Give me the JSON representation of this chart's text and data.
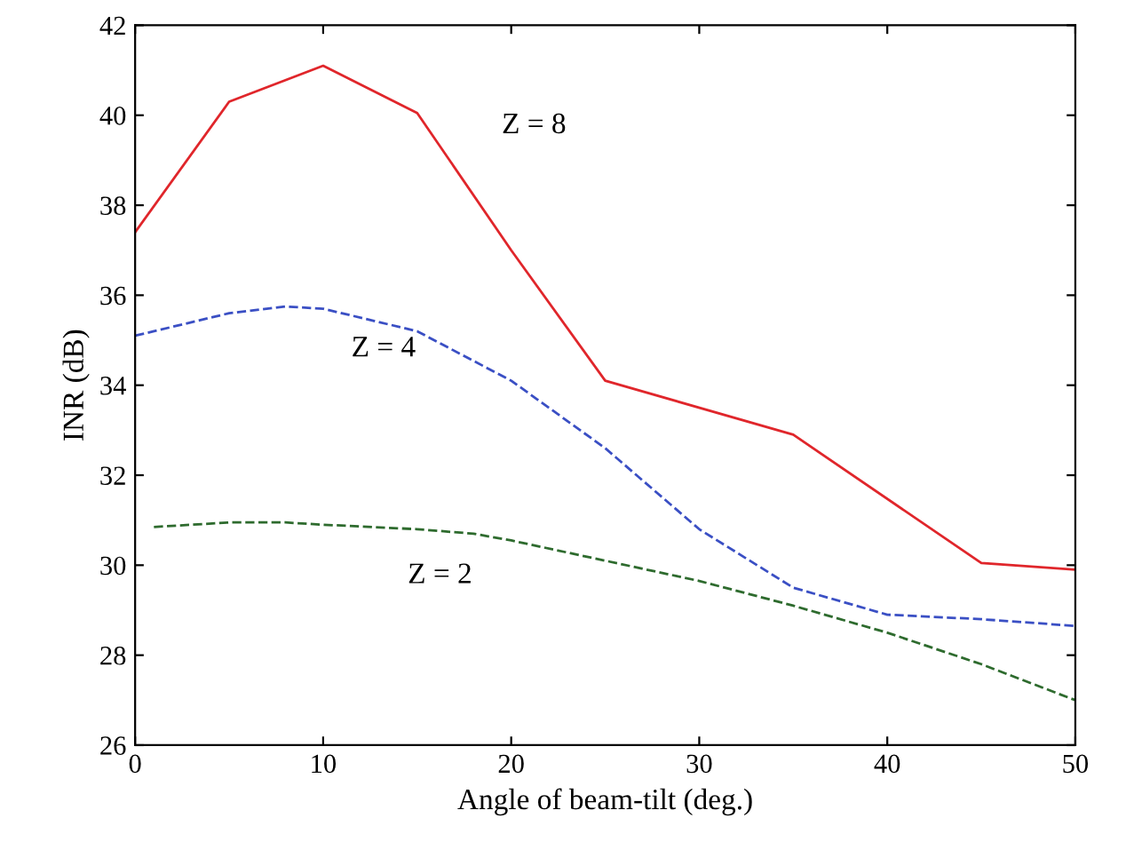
{
  "chart_data": {
    "type": "line",
    "xlabel": "Angle of beam-tilt (deg.)",
    "ylabel": "INR (dB)",
    "xlim": [
      0,
      50
    ],
    "xticks": [
      0,
      10,
      20,
      30,
      40,
      50
    ],
    "ylim": [
      26,
      42
    ],
    "yticks": [
      26,
      28,
      30,
      32,
      34,
      36,
      38,
      40,
      42
    ],
    "grid": false,
    "legend": false,
    "marker": "none",
    "series": [
      {
        "name": "Z = 8",
        "color": "#e0262b",
        "line_style": "solid",
        "x": [
          0,
          5,
          10,
          15,
          20,
          25,
          35,
          45,
          50
        ],
        "values": [
          37.4,
          40.3,
          41.1,
          40.05,
          37.0,
          34.1,
          32.9,
          30.05,
          29.9
        ]
      },
      {
        "name": "Z = 4",
        "color": "#3a4fc4",
        "line_style": "dashed",
        "x": [
          0,
          5,
          8,
          10,
          15,
          20,
          25,
          30,
          35,
          40,
          45,
          50
        ],
        "values": [
          35.1,
          35.6,
          35.75,
          35.7,
          35.2,
          34.1,
          32.6,
          30.8,
          29.5,
          28.9,
          28.8,
          28.65
        ]
      },
      {
        "name": "Z = 2",
        "color": "#2e6b2e",
        "line_style": "dashed",
        "x": [
          1,
          5,
          8,
          10,
          15,
          18,
          20,
          25,
          30,
          35,
          40,
          45,
          50
        ],
        "values": [
          30.85,
          30.95,
          30.95,
          30.9,
          30.8,
          30.7,
          30.55,
          30.1,
          29.65,
          29.1,
          28.5,
          27.8,
          27.0
        ]
      }
    ]
  }
}
